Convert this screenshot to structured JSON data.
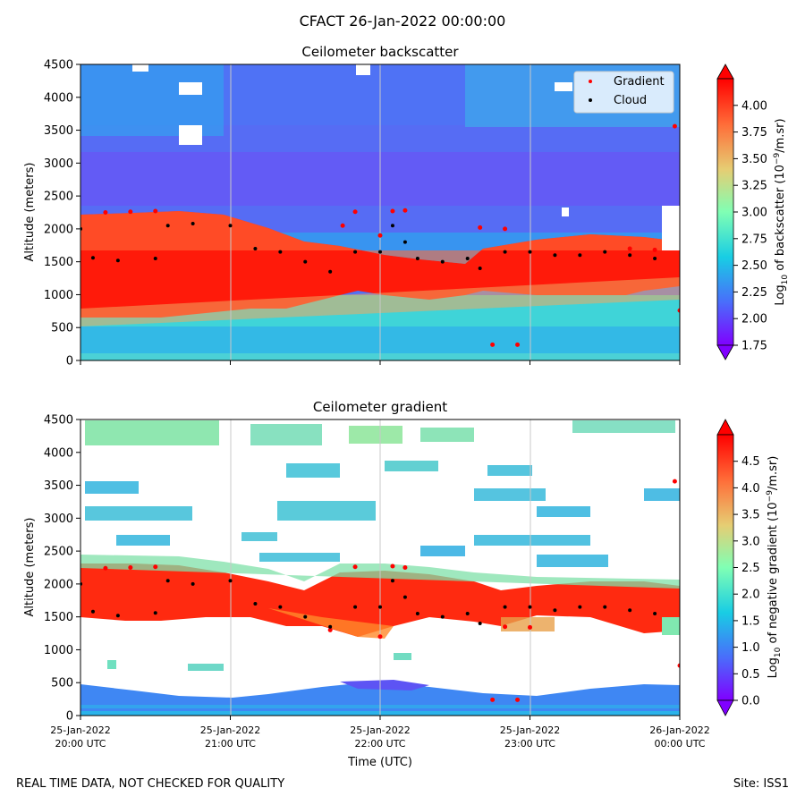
{
  "suptitle": "CFACT 26-Jan-2022 00:00:00",
  "footer": {
    "disclaimer": "REAL TIME DATA, NOT CHECKED FOR QUALITY",
    "site": "Site: ISS1"
  },
  "chart_data": [
    {
      "type": "heatmap",
      "title": "Ceilometer backscatter",
      "ylabel": "Altitude (meters)",
      "xlabel": "",
      "ylim": [
        0,
        4500
      ],
      "yticks": [
        0,
        500,
        1000,
        1500,
        2000,
        2500,
        3000,
        3500,
        4000,
        4500
      ],
      "xlim": [
        "2022-01-25 20:00",
        "2022-01-26 00:00"
      ],
      "xgrid": true,
      "legend": {
        "placement": "top-right",
        "entries": [
          {
            "name": "Gradient",
            "color": "#ff0000"
          },
          {
            "name": "Cloud",
            "color": "#000000"
          }
        ]
      },
      "colorbar": {
        "label": "Log10 of backscatter (10^-9/m.sr)",
        "label_parts": [
          "Log",
          "10",
          " of backscatter (10",
          "−9",
          "/m.sr)"
        ],
        "range": [
          1.75,
          4.25
        ],
        "ticks": [
          "1.75",
          "2.00",
          "2.25",
          "2.50",
          "2.75",
          "3.00",
          "3.25",
          "3.50",
          "3.75",
          "4.00"
        ],
        "extend": "both",
        "colormap": "rainbow"
      },
      "background": "Deep red (>4.0) layer roughly 800–2200 m before 22:00, thinning to 1200–1800 m after; cyan-green (≈2.7) below 800 m; blue (≈2.3) above 2500 m with white gaps.",
      "gradient_points": [
        {
          "x": "20:10",
          "y": 2250
        },
        {
          "x": "20:20",
          "y": 2260
        },
        {
          "x": "20:30",
          "y": 2270
        },
        {
          "x": "21:45",
          "y": 2050
        },
        {
          "x": "22:00",
          "y": 1900
        },
        {
          "x": "21:50",
          "y": 2260
        },
        {
          "x": "22:05",
          "y": 2270
        },
        {
          "x": "22:10",
          "y": 2280
        },
        {
          "x": "22:40",
          "y": 2020
        },
        {
          "x": "22:50",
          "y": 2000
        },
        {
          "x": "23:40",
          "y": 1700
        },
        {
          "x": "23:50",
          "y": 1680
        },
        {
          "x": "23:58",
          "y": 3560
        },
        {
          "x": "00:00",
          "y": 760
        },
        {
          "x": "22:45",
          "y": 240
        },
        {
          "x": "22:55",
          "y": 240
        }
      ],
      "cloud_points": [
        {
          "x": "20:00",
          "y": 2000
        },
        {
          "x": "20:05",
          "y": 1560
        },
        {
          "x": "20:15",
          "y": 1520
        },
        {
          "x": "20:30",
          "y": 1550
        },
        {
          "x": "20:35",
          "y": 2050
        },
        {
          "x": "20:45",
          "y": 2080
        },
        {
          "x": "21:00",
          "y": 2050
        },
        {
          "x": "21:10",
          "y": 1700
        },
        {
          "x": "21:20",
          "y": 1650
        },
        {
          "x": "21:30",
          "y": 1500
        },
        {
          "x": "21:40",
          "y": 1350
        },
        {
          "x": "21:50",
          "y": 1650
        },
        {
          "x": "22:00",
          "y": 1650
        },
        {
          "x": "22:05",
          "y": 2050
        },
        {
          "x": "22:10",
          "y": 1800
        },
        {
          "x": "22:15",
          "y": 1550
        },
        {
          "x": "22:25",
          "y": 1500
        },
        {
          "x": "22:35",
          "y": 1550
        },
        {
          "x": "22:40",
          "y": 1400
        },
        {
          "x": "22:50",
          "y": 1650
        },
        {
          "x": "23:00",
          "y": 1650
        },
        {
          "x": "23:10",
          "y": 1600
        },
        {
          "x": "23:20",
          "y": 1600
        },
        {
          "x": "23:30",
          "y": 1650
        },
        {
          "x": "23:40",
          "y": 1600
        },
        {
          "x": "23:50",
          "y": 1550
        }
      ]
    },
    {
      "type": "heatmap",
      "title": "Ceilometer gradient",
      "ylabel": "Altitude (meters)",
      "xlabel": "Time (UTC)",
      "ylim": [
        0,
        4500
      ],
      "yticks": [
        0,
        500,
        1000,
        1500,
        2000,
        2500,
        3000,
        3500,
        4000,
        4500
      ],
      "xticks": [
        {
          "date": "25-Jan-2022",
          "time": "20:00 UTC"
        },
        {
          "date": "25-Jan-2022",
          "time": "21:00 UTC"
        },
        {
          "date": "25-Jan-2022",
          "time": "22:00 UTC"
        },
        {
          "date": "25-Jan-2022",
          "time": "23:00 UTC"
        },
        {
          "date": "26-Jan-2022",
          "time": "00:00 UTC"
        }
      ],
      "xgrid": true,
      "colorbar": {
        "label": "Log10 of negative gradient (10^-9/m.sr)",
        "label_parts": [
          "Log",
          "10",
          " of negative gradient (10",
          "−9",
          "/m.sr)"
        ],
        "range": [
          0,
          5
        ],
        "ticks": [
          "0.0",
          "0.5",
          "1.0",
          "1.5",
          "2.0",
          "2.5",
          "3.0",
          "3.5",
          "4.0",
          "4.5"
        ],
        "extend": "both",
        "colormap": "rainbow"
      },
      "background": "Mostly white (no data); red gradient band 1500–2200 m; light blue/green patches at 2500–4500 m; blue near-surface band below 500 m.",
      "gradient_points": [
        {
          "x": "20:10",
          "y": 2240
        },
        {
          "x": "20:20",
          "y": 2250
        },
        {
          "x": "20:30",
          "y": 2260
        },
        {
          "x": "21:50",
          "y": 2260
        },
        {
          "x": "22:05",
          "y": 2270
        },
        {
          "x": "22:10",
          "y": 2250
        },
        {
          "x": "21:40",
          "y": 1300
        },
        {
          "x": "22:00",
          "y": 1200
        },
        {
          "x": "22:45",
          "y": 240
        },
        {
          "x": "22:55",
          "y": 240
        },
        {
          "x": "22:50",
          "y": 1350
        },
        {
          "x": "23:00",
          "y": 1340
        },
        {
          "x": "23:58",
          "y": 3560
        },
        {
          "x": "00:00",
          "y": 760
        }
      ],
      "cloud_points": [
        {
          "x": "20:00",
          "y": 2000
        },
        {
          "x": "20:05",
          "y": 1580
        },
        {
          "x": "20:15",
          "y": 1520
        },
        {
          "x": "20:30",
          "y": 1560
        },
        {
          "x": "20:35",
          "y": 2050
        },
        {
          "x": "20:45",
          "y": 2000
        },
        {
          "x": "21:00",
          "y": 2050
        },
        {
          "x": "21:10",
          "y": 1700
        },
        {
          "x": "21:20",
          "y": 1650
        },
        {
          "x": "21:30",
          "y": 1500
        },
        {
          "x": "21:40",
          "y": 1350
        },
        {
          "x": "21:50",
          "y": 1650
        },
        {
          "x": "22:00",
          "y": 1650
        },
        {
          "x": "22:05",
          "y": 2050
        },
        {
          "x": "22:10",
          "y": 1800
        },
        {
          "x": "22:15",
          "y": 1550
        },
        {
          "x": "22:25",
          "y": 1500
        },
        {
          "x": "22:35",
          "y": 1550
        },
        {
          "x": "22:40",
          "y": 1400
        },
        {
          "x": "22:50",
          "y": 1650
        },
        {
          "x": "23:00",
          "y": 1650
        },
        {
          "x": "23:10",
          "y": 1600
        },
        {
          "x": "23:20",
          "y": 1650
        },
        {
          "x": "23:30",
          "y": 1650
        },
        {
          "x": "23:40",
          "y": 1600
        },
        {
          "x": "23:50",
          "y": 1550
        }
      ]
    }
  ]
}
